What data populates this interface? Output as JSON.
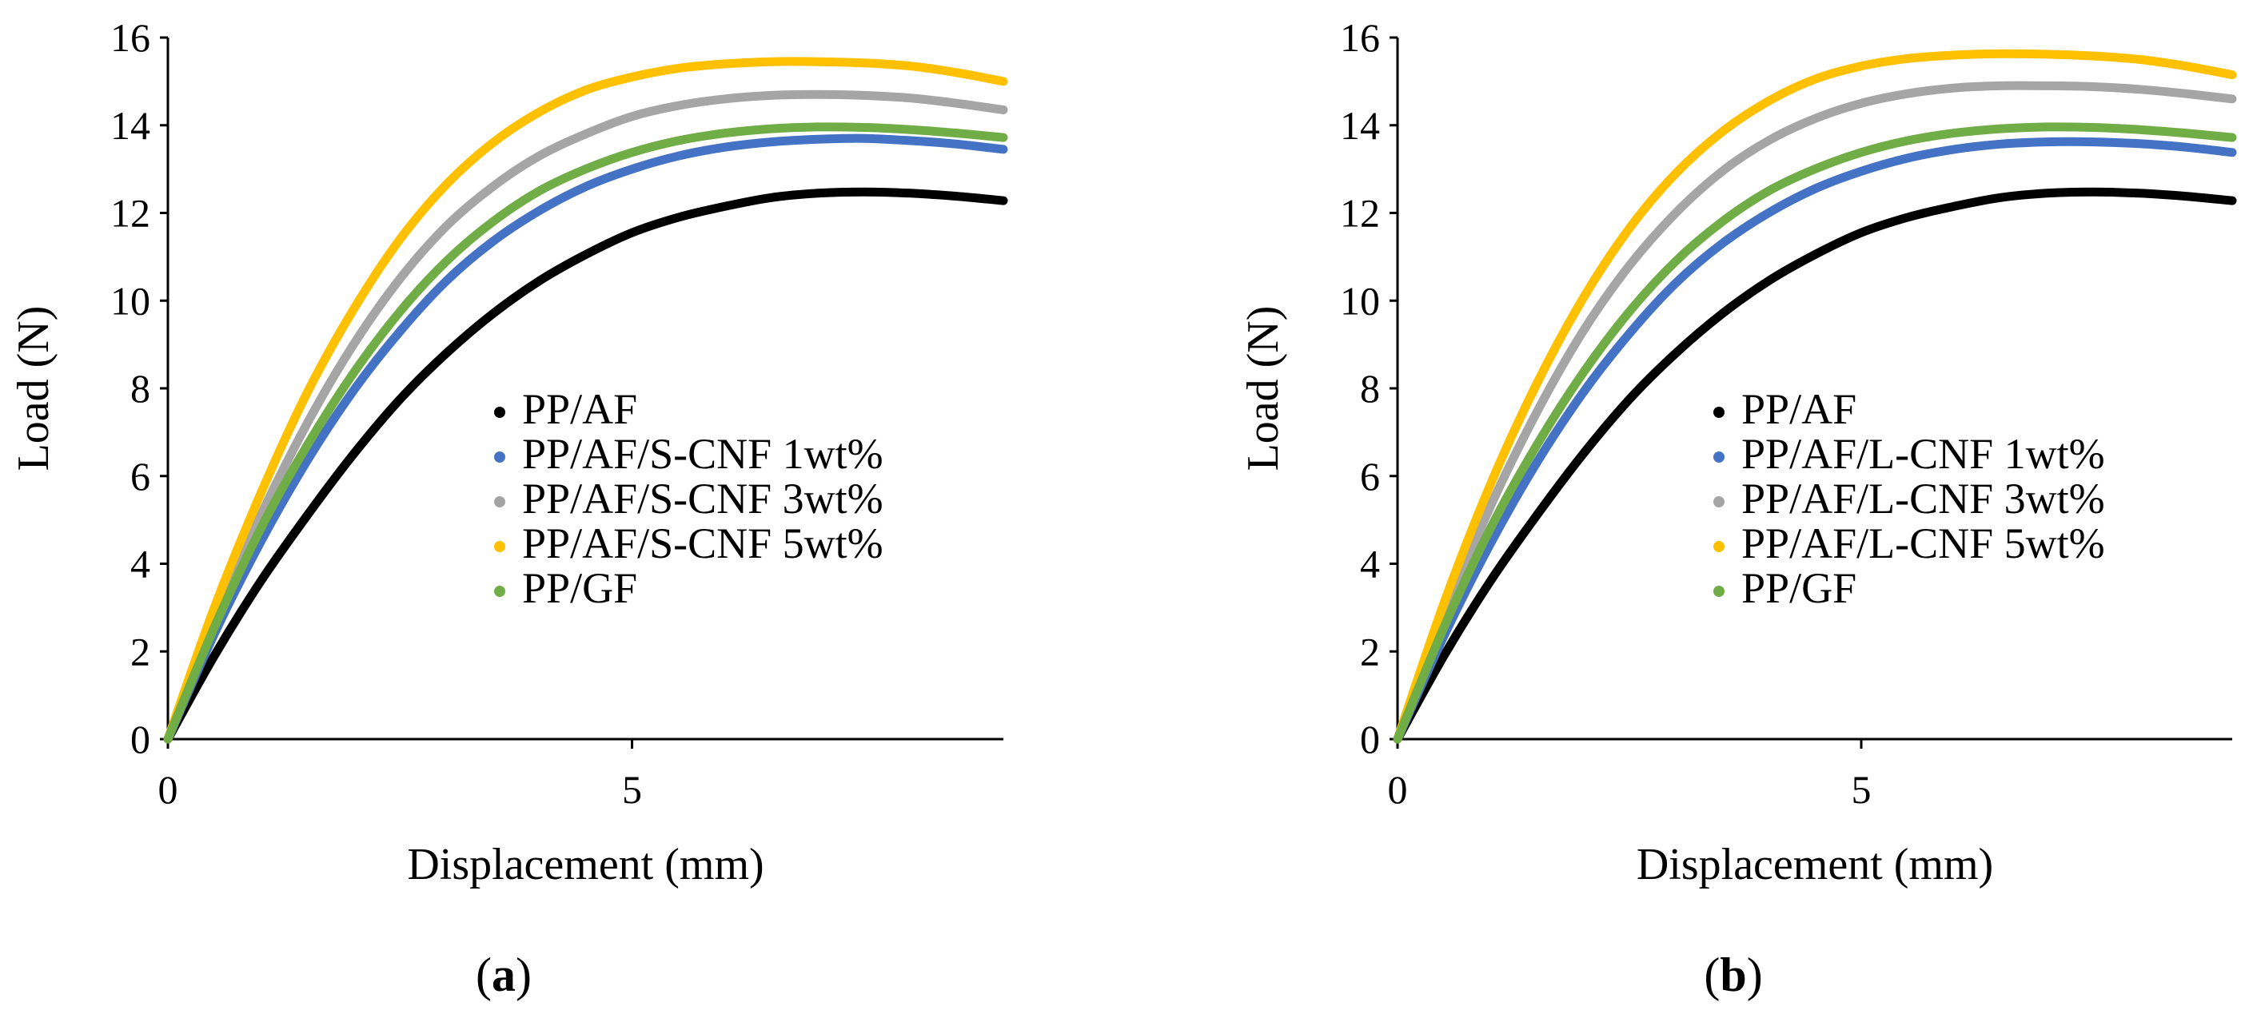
{
  "figure": {
    "panels": [
      {
        "label_open": "(",
        "label_letter": "a",
        "label_close": ")"
      },
      {
        "label_open": "(",
        "label_letter": "b",
        "label_close": ")"
      }
    ]
  },
  "chart_data": [
    {
      "type": "line",
      "title": "",
      "xlabel": "Displacement (mm)",
      "ylabel": "Load (N)",
      "xlim": [
        0,
        9
      ],
      "ylim": [
        0,
        16
      ],
      "xticks": [
        0,
        5
      ],
      "yticks": [
        0,
        2,
        4,
        6,
        8,
        10,
        12,
        14,
        16
      ],
      "grid": false,
      "legend_position": "center-right",
      "series": [
        {
          "name": "PP/AF",
          "color": "#000000",
          "x": [
            0,
            0.5,
            1,
            1.5,
            2,
            2.5,
            3,
            3.5,
            4,
            4.5,
            5,
            5.5,
            6,
            6.5,
            7,
            7.5,
            8,
            8.5,
            9
          ],
          "y": [
            0,
            1.9,
            3.6,
            5.1,
            6.5,
            7.75,
            8.8,
            9.7,
            10.45,
            11.05,
            11.55,
            11.9,
            12.15,
            12.35,
            12.45,
            12.48,
            12.45,
            12.38,
            12.28
          ]
        },
        {
          "name": "PP/AF/S-CNF 1wt%",
          "color": "#4472C4",
          "x": [
            0,
            0.5,
            1,
            1.5,
            2,
            2.5,
            3,
            3.5,
            4,
            4.5,
            5,
            5.5,
            6,
            6.5,
            7,
            7.5,
            8,
            8.5,
            9
          ],
          "y": [
            0,
            2.4,
            4.5,
            6.35,
            7.95,
            9.3,
            10.45,
            11.35,
            12.05,
            12.6,
            13.0,
            13.3,
            13.5,
            13.62,
            13.68,
            13.7,
            13.65,
            13.57,
            13.45
          ]
        },
        {
          "name": "PP/AF/S-CNF 3wt%",
          "color": "#A5A5A5",
          "x": [
            0,
            0.5,
            1,
            1.5,
            2,
            2.5,
            3,
            3.5,
            4,
            4.5,
            5,
            5.5,
            6,
            6.5,
            7,
            7.5,
            8,
            8.5,
            9
          ],
          "y": [
            0,
            2.7,
            5.1,
            7.2,
            9.0,
            10.5,
            11.7,
            12.6,
            13.3,
            13.8,
            14.2,
            14.45,
            14.6,
            14.68,
            14.7,
            14.68,
            14.62,
            14.5,
            14.35
          ]
        },
        {
          "name": "PP/AF/S-CNF 5wt%",
          "color": "#FFC000",
          "x": [
            0,
            0.5,
            1,
            1.5,
            2,
            2.5,
            3,
            3.5,
            4,
            4.5,
            5,
            5.5,
            6,
            6.5,
            7,
            7.5,
            8,
            8.5,
            9
          ],
          "y": [
            0,
            3.0,
            5.6,
            7.9,
            9.8,
            11.4,
            12.65,
            13.6,
            14.3,
            14.8,
            15.1,
            15.3,
            15.4,
            15.45,
            15.45,
            15.42,
            15.35,
            15.2,
            15.0
          ]
        },
        {
          "name": "PP/GF",
          "color": "#70AD47",
          "x": [
            0,
            0.5,
            1,
            1.5,
            2,
            2.5,
            3,
            3.5,
            4,
            4.5,
            5,
            5.5,
            6,
            6.5,
            7,
            7.5,
            8,
            8.5,
            9
          ],
          "y": [
            0,
            2.55,
            4.8,
            6.7,
            8.35,
            9.75,
            10.9,
            11.8,
            12.5,
            13.0,
            13.38,
            13.65,
            13.82,
            13.92,
            13.96,
            13.95,
            13.9,
            13.82,
            13.72
          ]
        }
      ]
    },
    {
      "type": "line",
      "title": "",
      "xlabel": "Displacement (mm)",
      "ylabel": "Load (N)",
      "xlim": [
        0,
        9
      ],
      "ylim": [
        0,
        16
      ],
      "xticks": [
        0,
        5
      ],
      "yticks": [
        0,
        2,
        4,
        6,
        8,
        10,
        12,
        14,
        16
      ],
      "grid": false,
      "legend_position": "center-right",
      "series": [
        {
          "name": "PP/AF",
          "color": "#000000",
          "x": [
            0,
            0.5,
            1,
            1.5,
            2,
            2.5,
            3,
            3.5,
            4,
            4.5,
            5,
            5.5,
            6,
            6.5,
            7,
            7.5,
            8,
            8.5,
            9
          ],
          "y": [
            0,
            1.9,
            3.6,
            5.1,
            6.5,
            7.75,
            8.8,
            9.7,
            10.45,
            11.05,
            11.55,
            11.9,
            12.15,
            12.35,
            12.45,
            12.48,
            12.45,
            12.38,
            12.28
          ]
        },
        {
          "name": "PP/AF/L-CNF 1wt%",
          "color": "#4472C4",
          "x": [
            0,
            0.5,
            1,
            1.5,
            2,
            2.5,
            3,
            3.5,
            4,
            4.5,
            5,
            5.5,
            6,
            6.5,
            7,
            7.5,
            8,
            8.5,
            9
          ],
          "y": [
            0,
            2.35,
            4.45,
            6.3,
            7.9,
            9.25,
            10.4,
            11.3,
            12.0,
            12.55,
            12.95,
            13.25,
            13.45,
            13.57,
            13.62,
            13.62,
            13.58,
            13.5,
            13.38
          ]
        },
        {
          "name": "PP/AF/L-CNF 3wt%",
          "color": "#A5A5A5",
          "x": [
            0,
            0.5,
            1,
            1.5,
            2,
            2.5,
            3,
            3.5,
            4,
            4.5,
            5,
            5.5,
            6,
            6.5,
            7,
            7.5,
            8,
            8.5,
            9
          ],
          "y": [
            0,
            2.8,
            5.3,
            7.45,
            9.3,
            10.8,
            12.0,
            12.95,
            13.65,
            14.15,
            14.5,
            14.72,
            14.85,
            14.9,
            14.9,
            14.88,
            14.82,
            14.72,
            14.6
          ]
        },
        {
          "name": "PP/AF/L-CNF 5wt%",
          "color": "#FFC000",
          "x": [
            0,
            0.5,
            1,
            1.5,
            2,
            2.5,
            3,
            3.5,
            4,
            4.5,
            5,
            5.5,
            6,
            6.5,
            7,
            7.5,
            8,
            8.5,
            9
          ],
          "y": [
            0,
            3.1,
            5.8,
            8.1,
            10.05,
            11.65,
            12.9,
            13.85,
            14.55,
            15.05,
            15.35,
            15.52,
            15.6,
            15.63,
            15.62,
            15.58,
            15.5,
            15.35,
            15.15
          ]
        },
        {
          "name": "PP/GF",
          "color": "#70AD47",
          "x": [
            0,
            0.5,
            1,
            1.5,
            2,
            2.5,
            3,
            3.5,
            4,
            4.5,
            5,
            5.5,
            6,
            6.5,
            7,
            7.5,
            8,
            8.5,
            9
          ],
          "y": [
            0,
            2.55,
            4.8,
            6.7,
            8.35,
            9.75,
            10.9,
            11.8,
            12.5,
            13.0,
            13.38,
            13.65,
            13.82,
            13.92,
            13.96,
            13.95,
            13.9,
            13.82,
            13.72
          ]
        }
      ]
    }
  ]
}
